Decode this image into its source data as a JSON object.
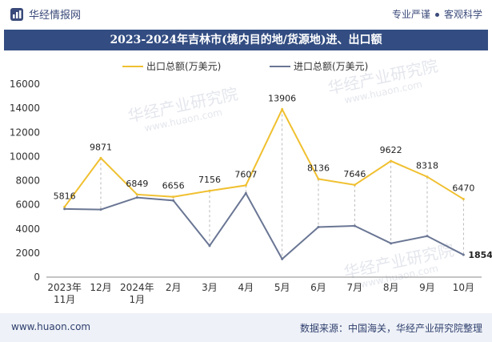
{
  "brand": {
    "name": "华经情报网"
  },
  "slogan": {
    "left": "专业严谨",
    "right": "客观科学"
  },
  "title": "2023-2024年吉林市(境内目的地/货源地)进、出口额",
  "footer": {
    "url": "www.huaon.com",
    "source": "数据来源：中国海关，华经产业研究院整理"
  },
  "watermarks": {
    "cn": "华经产业研究院",
    "en": "www.huaon.com"
  },
  "colors": {
    "export": "#f0c030",
    "import": "#6a7694",
    "title_bg": "#334d82"
  },
  "chart_data": {
    "type": "line",
    "title": "2023-2024年吉林市(境内目的地/货源地)进、出口额",
    "categories": [
      "2023年\n11月",
      "12月",
      "2024年\n1月",
      "2月",
      "3月",
      "4月",
      "5月",
      "6月",
      "7月",
      "8月",
      "9月",
      "10月"
    ],
    "ylim": [
      0,
      16000
    ],
    "yticks": [
      0,
      2000,
      4000,
      6000,
      8000,
      10000,
      12000,
      14000,
      16000
    ],
    "legend": "top-center",
    "series": [
      {
        "name": "出口总额(万美元)",
        "values": [
          5816,
          9871,
          6849,
          6656,
          7156,
          7607,
          13906,
          8136,
          7646,
          9622,
          8318,
          6470
        ],
        "labels": [
          "5816",
          "9871",
          "6849",
          "6656",
          "7156",
          "7607",
          "13906",
          "8136",
          "7646",
          "9622",
          "8318",
          "6470"
        ]
      },
      {
        "name": "进口总额(万美元)",
        "values": [
          5650,
          5600,
          6600,
          6350,
          2600,
          6950,
          1500,
          4150,
          4250,
          2800,
          3400,
          1854
        ],
        "labels": [
          "",
          "",
          "",
          "",
          "",
          "",
          "",
          "",
          "",
          "",
          "",
          "1854"
        ]
      }
    ]
  }
}
